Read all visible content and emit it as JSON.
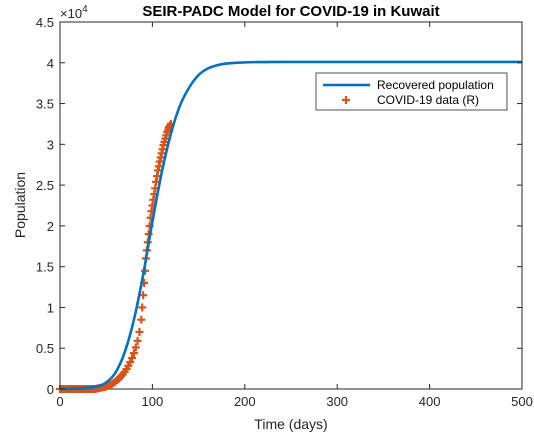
{
  "chart_data": {
    "type": "line",
    "title": "SEIR-PADC Model for COVID-19 in Kuwait",
    "xlabel": "Time (days)",
    "ylabel": "Population",
    "y_exponent_base": "×10",
    "y_exponent_power": "4",
    "xlim": [
      0,
      500
    ],
    "ylim": [
      0,
      45000
    ],
    "x_ticks": [
      0,
      100,
      200,
      300,
      400,
      500
    ],
    "x_tick_labels": [
      "0",
      "100",
      "200",
      "300",
      "400",
      "500"
    ],
    "y_ticks": [
      0,
      5000,
      10000,
      15000,
      20000,
      25000,
      30000,
      35000,
      40000,
      45000
    ],
    "y_tick_labels": [
      "0",
      "0.5",
      "1",
      "1.5",
      "2",
      "2.5",
      "3",
      "3.5",
      "4",
      "4.5"
    ],
    "grid": false,
    "legend_position": "top-right",
    "colors": {
      "model": "#0072BD",
      "data": "#D95319"
    },
    "series": [
      {
        "name": "Recovered population",
        "kind": "line",
        "x": [
          0,
          20,
          40,
          50,
          60,
          70,
          80,
          90,
          100,
          110,
          120,
          130,
          140,
          150,
          160,
          170,
          180,
          190,
          200,
          210,
          220,
          240,
          260,
          300,
          400,
          500
        ],
        "y": [
          0,
          50,
          300,
          800,
          2000,
          4500,
          8500,
          14000,
          20500,
          26500,
          31300,
          34800,
          37000,
          38500,
          39300,
          39700,
          39900,
          40000,
          40050,
          40080,
          40090,
          40100,
          40100,
          40100,
          40100,
          40100
        ]
      },
      {
        "name": "COVID-19 data (R)",
        "kind": "markers",
        "marker": "plus",
        "x": [
          0,
          2,
          4,
          6,
          8,
          10,
          12,
          14,
          16,
          18,
          20,
          22,
          24,
          26,
          28,
          30,
          32,
          34,
          36,
          38,
          40,
          42,
          44,
          46,
          48,
          50,
          52,
          54,
          56,
          58,
          60,
          62,
          64,
          66,
          68,
          70,
          72,
          74,
          76,
          78,
          80,
          82,
          84,
          86,
          88,
          89,
          90,
          91,
          92,
          93,
          94,
          95,
          96,
          97,
          98,
          99,
          100,
          101,
          102,
          103,
          104,
          105,
          106,
          107,
          108,
          109,
          110,
          111,
          112,
          113,
          114,
          115,
          116,
          117,
          118,
          119,
          120
        ],
        "y": [
          0,
          0,
          0,
          0,
          0,
          0,
          0,
          0,
          0,
          0,
          0,
          0,
          0,
          0,
          0,
          0,
          0,
          0,
          0,
          0,
          50,
          100,
          150,
          200,
          250,
          300,
          400,
          500,
          600,
          750,
          900,
          1100,
          1300,
          1550,
          1800,
          2100,
          2450,
          2850,
          3300,
          3800,
          4400,
          5100,
          5900,
          7000,
          8500,
          10000,
          11500,
          13000,
          14500,
          16000,
          17000,
          18000,
          19000,
          20000,
          21000,
          21800,
          22500,
          23200,
          23900,
          24600,
          25400,
          26100,
          26800,
          27300,
          27900,
          28400,
          28900,
          29400,
          29900,
          30300,
          30700,
          31100,
          31500,
          31800,
          32100,
          32300,
          32500
        ]
      }
    ]
  }
}
